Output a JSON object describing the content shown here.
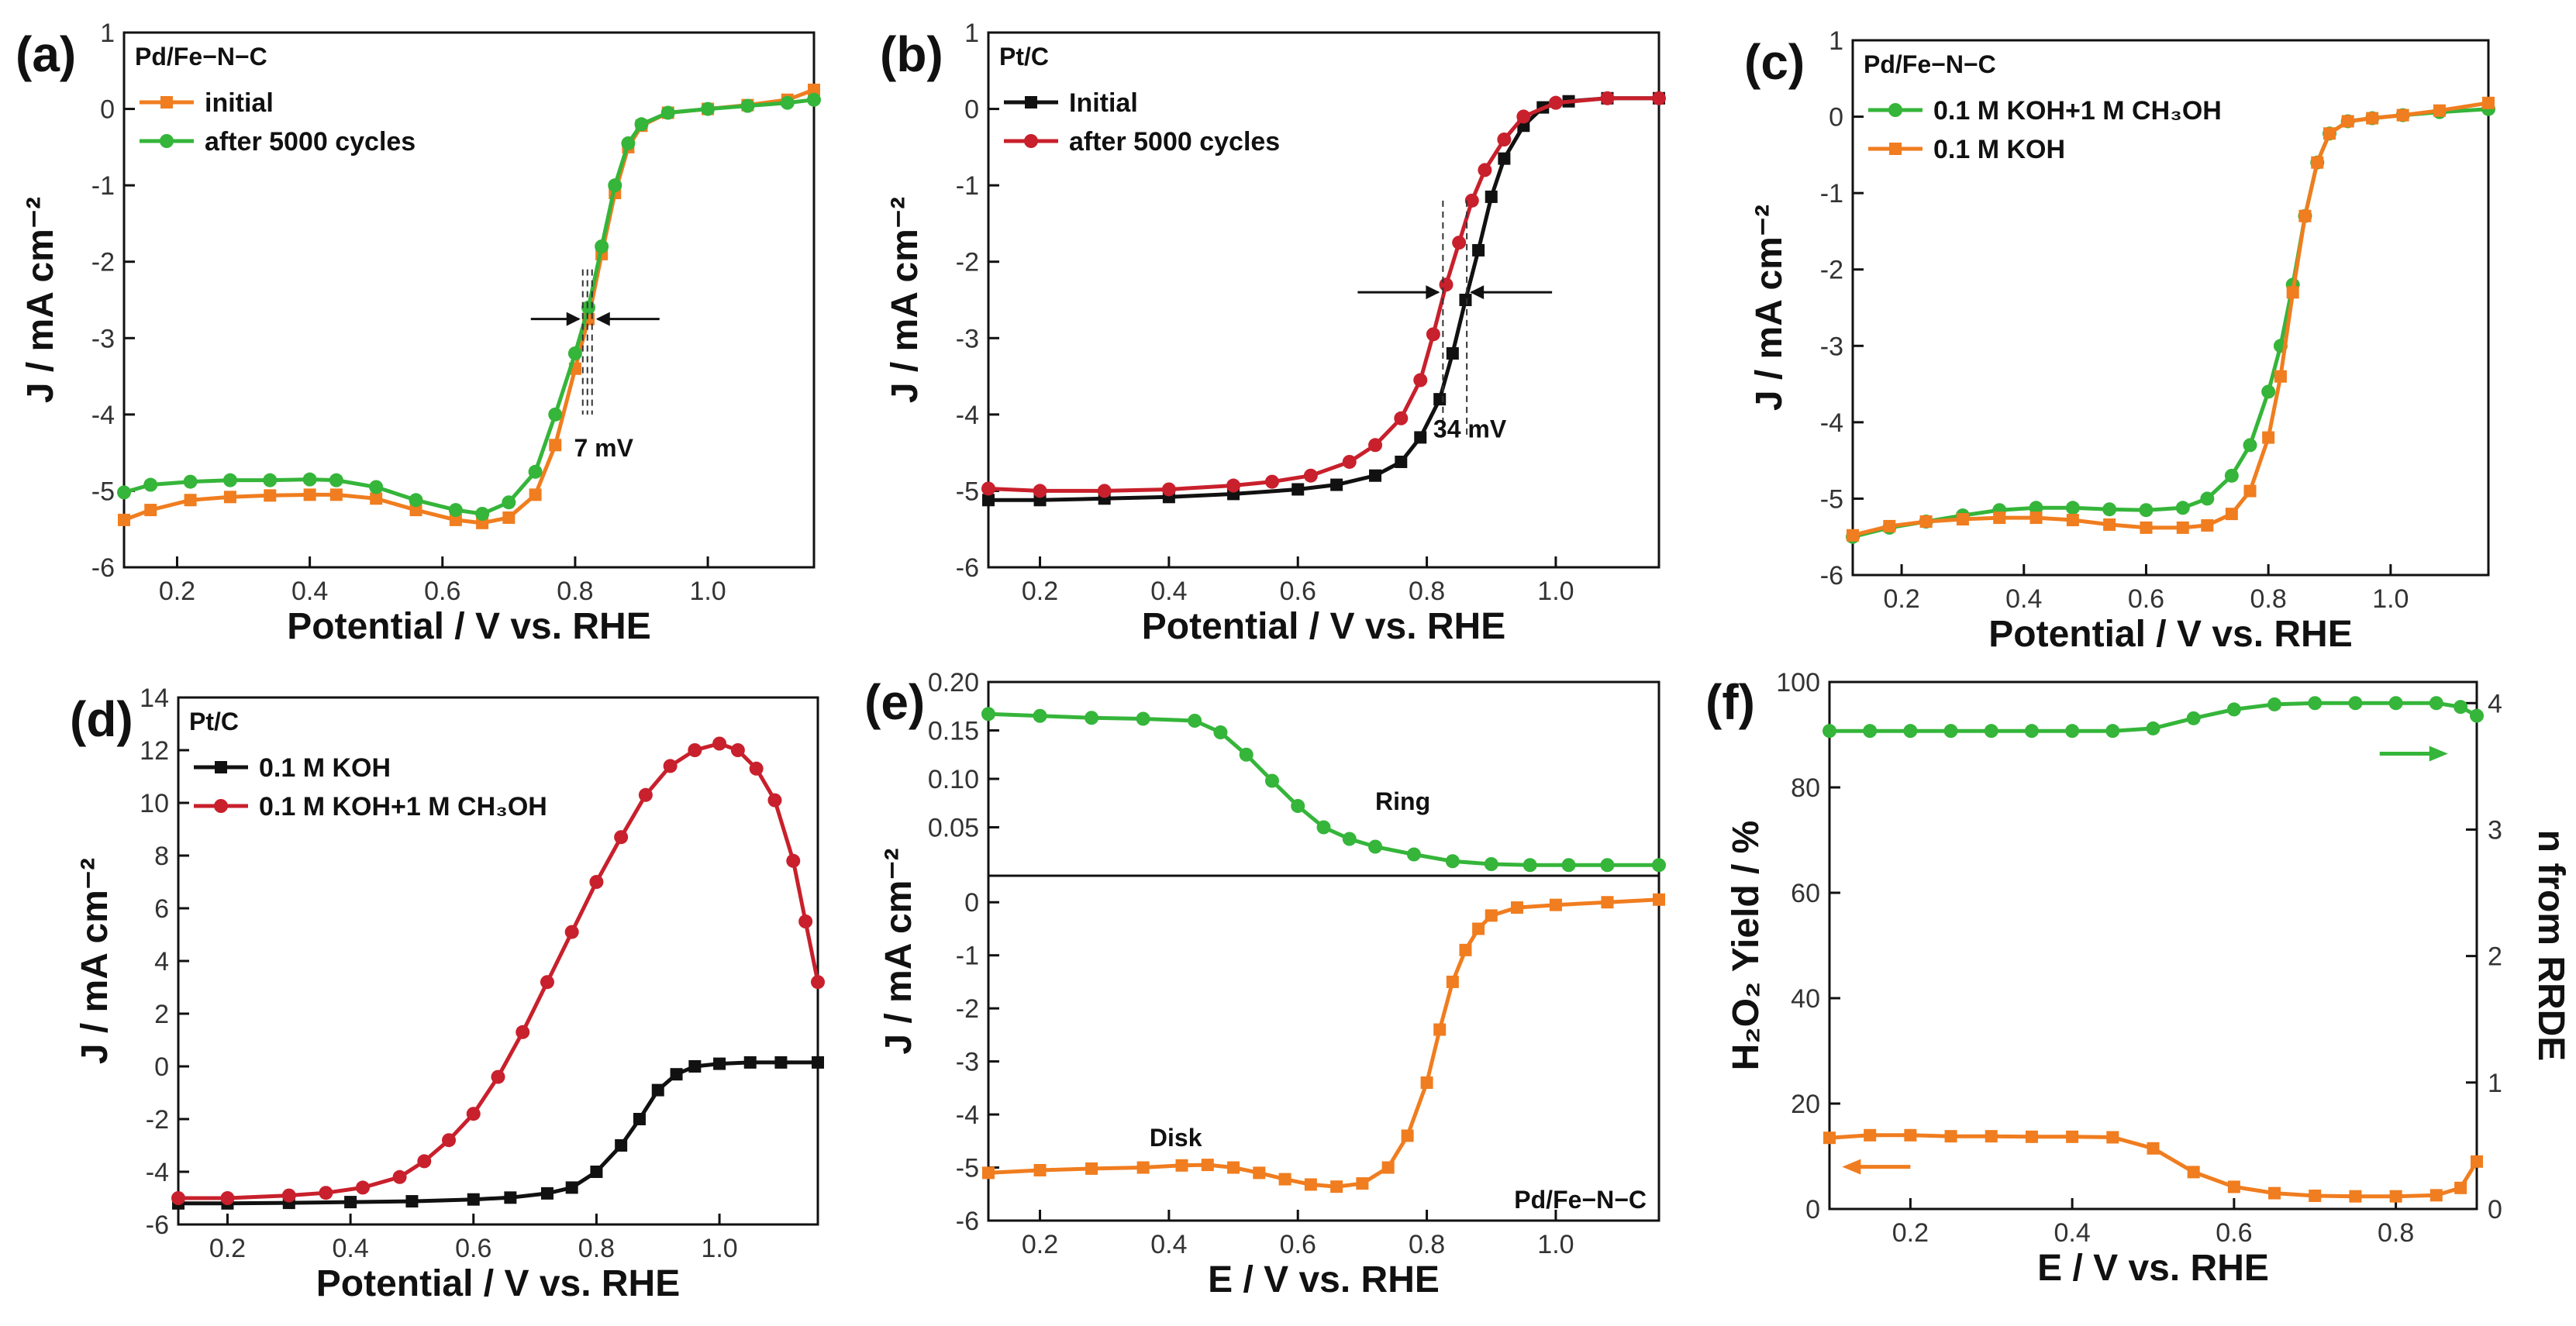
{
  "chart_data": [
    {
      "id": "a",
      "panel_label": "(a)",
      "type": "line",
      "title": "Pd/Fe−N−C",
      "xlabel": "Potential / V vs. RHE",
      "ylabel": "J / mA cm⁻²",
      "xlim": [
        0.12,
        1.16
      ],
      "ylim": [
        -6,
        1
      ],
      "xticks": [
        "0.2",
        "0.4",
        "0.6",
        "0.8",
        "1.0"
      ],
      "yticks": [
        "-6",
        "-5",
        "-4",
        "-3",
        "-2",
        "-1",
        "0",
        "1"
      ],
      "annotation": "7 mV",
      "series": [
        {
          "name": "initial",
          "color": "#f07d1f",
          "x": [
            0.12,
            0.16,
            0.22,
            0.28,
            0.34,
            0.4,
            0.44,
            0.5,
            0.56,
            0.62,
            0.66,
            0.7,
            0.74,
            0.77,
            0.8,
            0.82,
            0.84,
            0.86,
            0.88,
            0.9,
            0.94,
            1.0,
            1.06,
            1.12,
            1.16
          ],
          "y": [
            -5.38,
            -5.25,
            -5.12,
            -5.08,
            -5.06,
            -5.05,
            -5.05,
            -5.1,
            -5.25,
            -5.38,
            -5.42,
            -5.35,
            -5.05,
            -4.4,
            -3.4,
            -2.75,
            -1.9,
            -1.1,
            -0.5,
            -0.22,
            -0.05,
            0.0,
            0.05,
            0.12,
            0.25
          ]
        },
        {
          "name": "after 5000 cycles",
          "color": "#35b53a",
          "x": [
            0.12,
            0.16,
            0.22,
            0.28,
            0.34,
            0.4,
            0.44,
            0.5,
            0.56,
            0.62,
            0.66,
            0.7,
            0.74,
            0.77,
            0.8,
            0.82,
            0.84,
            0.86,
            0.88,
            0.9,
            0.94,
            1.0,
            1.06,
            1.12,
            1.16
          ],
          "y": [
            -5.02,
            -4.92,
            -4.88,
            -4.86,
            -4.86,
            -4.85,
            -4.86,
            -4.95,
            -5.12,
            -5.25,
            -5.3,
            -5.15,
            -4.75,
            -4.0,
            -3.2,
            -2.6,
            -1.8,
            -1.0,
            -0.45,
            -0.2,
            -0.05,
            0.0,
            0.04,
            0.08,
            0.12
          ]
        }
      ]
    },
    {
      "id": "b",
      "panel_label": "(b)",
      "type": "line",
      "title": "Pt/C",
      "xlabel": "Potential / V vs. RHE",
      "ylabel": "J / mA cm⁻²",
      "xlim": [
        0.12,
        1.16
      ],
      "ylim": [
        -6,
        1
      ],
      "xticks": [
        "0.2",
        "0.4",
        "0.6",
        "0.8",
        "1.0"
      ],
      "yticks": [
        "-6",
        "-5",
        "-4",
        "-3",
        "-2",
        "-1",
        "0",
        "1"
      ],
      "annotation": "34 mV",
      "series": [
        {
          "name": "Initial",
          "color": "#111111",
          "x": [
            0.12,
            0.2,
            0.3,
            0.4,
            0.5,
            0.6,
            0.66,
            0.72,
            0.76,
            0.79,
            0.82,
            0.84,
            0.86,
            0.88,
            0.9,
            0.92,
            0.95,
            0.98,
            1.02,
            1.08,
            1.16
          ],
          "y": [
            -5.12,
            -5.12,
            -5.1,
            -5.08,
            -5.04,
            -4.98,
            -4.92,
            -4.8,
            -4.62,
            -4.3,
            -3.8,
            -3.2,
            -2.5,
            -1.85,
            -1.15,
            -0.65,
            -0.22,
            0.02,
            0.1,
            0.14,
            0.14
          ]
        },
        {
          "name": "after 5000 cycles",
          "color": "#c8202c",
          "x": [
            0.12,
            0.2,
            0.3,
            0.4,
            0.5,
            0.56,
            0.62,
            0.68,
            0.72,
            0.76,
            0.79,
            0.81,
            0.83,
            0.85,
            0.87,
            0.89,
            0.92,
            0.95,
            1.0,
            1.08,
            1.16
          ],
          "y": [
            -4.97,
            -5.0,
            -5.0,
            -4.98,
            -4.93,
            -4.88,
            -4.8,
            -4.62,
            -4.4,
            -4.05,
            -3.55,
            -2.95,
            -2.3,
            -1.75,
            -1.2,
            -0.8,
            -0.4,
            -0.1,
            0.08,
            0.14,
            0.14
          ]
        }
      ]
    },
    {
      "id": "c",
      "panel_label": "(c)",
      "type": "line",
      "title": "Pd/Fe−N−C",
      "xlabel": "Potential / V vs. RHE",
      "ylabel": "J / mA cm⁻²",
      "xlim": [
        0.12,
        1.16
      ],
      "ylim": [
        -6,
        1
      ],
      "xticks": [
        "0.2",
        "0.4",
        "0.6",
        "0.8",
        "1.0"
      ],
      "yticks": [
        "-6",
        "-5",
        "-4",
        "-3",
        "-2",
        "-1",
        "0",
        "1"
      ],
      "series": [
        {
          "name": "0.1 M KOH+1 M CH₃OH",
          "color": "#35b53a",
          "x": [
            0.12,
            0.18,
            0.24,
            0.3,
            0.36,
            0.42,
            0.48,
            0.54,
            0.6,
            0.66,
            0.7,
            0.74,
            0.77,
            0.8,
            0.82,
            0.84,
            0.86,
            0.88,
            0.9,
            0.93,
            0.97,
            1.02,
            1.08,
            1.16
          ],
          "y": [
            -5.5,
            -5.38,
            -5.3,
            -5.22,
            -5.15,
            -5.12,
            -5.12,
            -5.14,
            -5.15,
            -5.12,
            -5.0,
            -4.7,
            -4.3,
            -3.6,
            -3.0,
            -2.2,
            -1.3,
            -0.6,
            -0.22,
            -0.06,
            -0.02,
            0.02,
            0.06,
            0.1
          ]
        },
        {
          "name": "0.1 M KOH",
          "color": "#f07d1f",
          "x": [
            0.12,
            0.18,
            0.24,
            0.3,
            0.36,
            0.42,
            0.48,
            0.54,
            0.6,
            0.66,
            0.7,
            0.74,
            0.77,
            0.8,
            0.82,
            0.84,
            0.86,
            0.88,
            0.9,
            0.93,
            0.97,
            1.02,
            1.08,
            1.16
          ],
          "y": [
            -5.48,
            -5.36,
            -5.3,
            -5.27,
            -5.25,
            -5.25,
            -5.28,
            -5.34,
            -5.38,
            -5.38,
            -5.35,
            -5.2,
            -4.9,
            -4.2,
            -3.4,
            -2.3,
            -1.3,
            -0.6,
            -0.22,
            -0.06,
            -0.02,
            0.02,
            0.08,
            0.18
          ]
        }
      ]
    },
    {
      "id": "d",
      "panel_label": "(d)",
      "type": "line",
      "title": "Pt/C",
      "xlabel": "Potential / V vs. RHE",
      "ylabel": "J / mA cm⁻²",
      "xlim": [
        0.12,
        1.16
      ],
      "ylim": [
        -6,
        14
      ],
      "xticks": [
        "0.2",
        "0.4",
        "0.6",
        "0.8",
        "1.0"
      ],
      "yticks": [
        "-6",
        "-4",
        "-2",
        "0",
        "2",
        "4",
        "6",
        "8",
        "10",
        "12",
        "14"
      ],
      "series": [
        {
          "name": "0.1 M KOH",
          "color": "#111111",
          "x": [
            0.12,
            0.2,
            0.3,
            0.4,
            0.5,
            0.6,
            0.66,
            0.72,
            0.76,
            0.8,
            0.84,
            0.87,
            0.9,
            0.93,
            0.96,
            1.0,
            1.05,
            1.1,
            1.16
          ],
          "y": [
            -5.2,
            -5.2,
            -5.18,
            -5.15,
            -5.12,
            -5.05,
            -4.98,
            -4.82,
            -4.6,
            -4.0,
            -3.0,
            -2.0,
            -0.9,
            -0.3,
            0.0,
            0.1,
            0.15,
            0.15,
            0.15
          ]
        },
        {
          "name": "0.1 M KOH+1 M CH₃OH",
          "color": "#c8202c",
          "x": [
            0.12,
            0.2,
            0.3,
            0.36,
            0.42,
            0.48,
            0.52,
            0.56,
            0.6,
            0.64,
            0.68,
            0.72,
            0.76,
            0.8,
            0.84,
            0.88,
            0.92,
            0.96,
            1.0,
            1.03,
            1.06,
            1.09,
            1.12,
            1.14,
            1.16
          ],
          "y": [
            -5.0,
            -5.0,
            -4.9,
            -4.8,
            -4.6,
            -4.2,
            -3.6,
            -2.8,
            -1.8,
            -0.4,
            1.3,
            3.2,
            5.1,
            7.0,
            8.7,
            10.3,
            11.4,
            12.0,
            12.25,
            12.0,
            11.3,
            10.1,
            7.8,
            5.5,
            3.2
          ]
        }
      ]
    },
    {
      "id": "e",
      "panel_label": "(e)",
      "type": "line",
      "xlabel": "E / V vs. RHE",
      "ylabel": "J / mA cm⁻²",
      "xticks": [
        "0.2",
        "0.4",
        "0.6",
        "0.8",
        "1.0"
      ],
      "xlim": [
        0.12,
        1.16
      ],
      "ring": {
        "label": "Ring",
        "color": "#35b53a",
        "ylim": [
          0,
          0.2
        ],
        "yticks": [
          "0.05",
          "0.10",
          "0.15",
          "0.20"
        ],
        "x": [
          0.12,
          0.2,
          0.28,
          0.36,
          0.44,
          0.48,
          0.52,
          0.56,
          0.6,
          0.64,
          0.68,
          0.72,
          0.78,
          0.84,
          0.9,
          0.96,
          1.02,
          1.08,
          1.16
        ],
        "y": [
          0.167,
          0.165,
          0.163,
          0.162,
          0.16,
          0.148,
          0.125,
          0.098,
          0.072,
          0.05,
          0.038,
          0.03,
          0.022,
          0.015,
          0.012,
          0.011,
          0.011,
          0.011,
          0.011
        ]
      },
      "disk": {
        "label": "Disk",
        "color": "#f07d1f",
        "ylim": [
          -6,
          0.5
        ],
        "yticks": [
          "-6",
          "-5",
          "-4",
          "-3",
          "-2",
          "-1",
          "0"
        ],
        "x": [
          0.12,
          0.2,
          0.28,
          0.36,
          0.42,
          0.46,
          0.5,
          0.54,
          0.58,
          0.62,
          0.66,
          0.7,
          0.74,
          0.77,
          0.8,
          0.82,
          0.84,
          0.86,
          0.88,
          0.9,
          0.94,
          1.0,
          1.08,
          1.16
        ],
        "y": [
          -5.1,
          -5.05,
          -5.02,
          -5.0,
          -4.96,
          -4.95,
          -5.0,
          -5.1,
          -5.22,
          -5.32,
          -5.36,
          -5.3,
          -5.0,
          -4.4,
          -3.4,
          -2.4,
          -1.5,
          -0.9,
          -0.5,
          -0.25,
          -0.1,
          -0.05,
          0.0,
          0.05
        ]
      },
      "annotation": "Pd/Fe−N−C"
    },
    {
      "id": "f",
      "panel_label": "(f)",
      "type": "line",
      "xlabel": "E / V vs. RHE",
      "ylabel": "H₂O₂ Yield / %",
      "ylabel_right": "n from RRDE",
      "xlim": [
        0.1,
        0.9
      ],
      "ylim": [
        0,
        100
      ],
      "ylim_right": [
        0,
        4.167
      ],
      "xticks": [
        "0.2",
        "0.4",
        "0.6",
        "0.8"
      ],
      "yticks": [
        "0",
        "20",
        "40",
        "60",
        "80",
        "100"
      ],
      "yticks_right": [
        "0",
        "1",
        "2",
        "3",
        "4"
      ],
      "series": [
        {
          "name": "n from RRDE",
          "axis": "right",
          "color": "#35b53a",
          "x": [
            0.1,
            0.15,
            0.2,
            0.25,
            0.3,
            0.35,
            0.4,
            0.45,
            0.5,
            0.55,
            0.6,
            0.65,
            0.7,
            0.75,
            0.8,
            0.85,
            0.88,
            0.9
          ],
          "y": [
            3.78,
            3.78,
            3.78,
            3.78,
            3.78,
            3.78,
            3.78,
            3.78,
            3.8,
            3.88,
            3.95,
            3.99,
            4.0,
            4.0,
            4.0,
            4.0,
            3.97,
            3.9
          ]
        },
        {
          "name": "H₂O₂ Yield",
          "axis": "left",
          "color": "#f07d1f",
          "x": [
            0.1,
            0.15,
            0.2,
            0.25,
            0.3,
            0.35,
            0.4,
            0.45,
            0.5,
            0.55,
            0.6,
            0.65,
            0.7,
            0.75,
            0.8,
            0.85,
            0.88,
            0.9
          ],
          "y": [
            13.5,
            14,
            14,
            13.8,
            13.8,
            13.7,
            13.7,
            13.6,
            11.5,
            7,
            4.2,
            3,
            2.5,
            2.4,
            2.4,
            2.6,
            4,
            9
          ]
        }
      ]
    }
  ]
}
